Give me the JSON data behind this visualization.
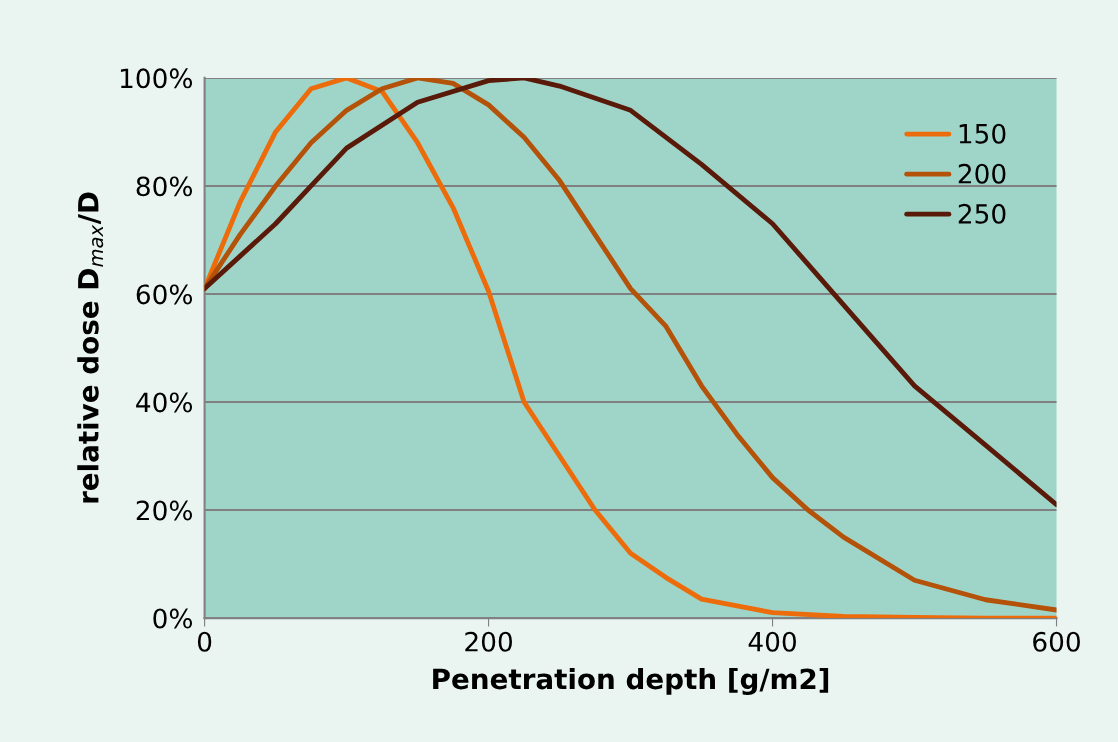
{
  "chart_data": {
    "type": "line",
    "xlabel": "Penetration depth [g/m2]",
    "ylabel": "relative dose D$_{max}$/D",
    "xlim": [
      0,
      600
    ],
    "xticks": [
      0,
      200,
      400,
      600
    ],
    "ylim": [
      0,
      100
    ],
    "yticks": [
      {
        "value": 0,
        "label": "0%"
      },
      {
        "value": 20,
        "label": "20%"
      },
      {
        "value": 40,
        "label": "40%"
      },
      {
        "value": 60,
        "label": "60%"
      },
      {
        "value": 80,
        "label": "80%"
      },
      {
        "value": 100,
        "label": "100%"
      }
    ],
    "grid": "y",
    "legend": "top right",
    "line_style": "solid",
    "marker": "none",
    "series": [
      {
        "name": "150",
        "color": "#ec6c0c",
        "x": [
          0,
          25,
          50,
          75,
          100,
          125,
          150,
          175,
          200,
          225,
          250,
          275,
          300,
          325,
          350,
          400,
          450,
          500,
          550,
          600
        ],
        "values": [
          61,
          77,
          90,
          98,
          100,
          97.5,
          88,
          76,
          60.5,
          40,
          30,
          20,
          12,
          7.5,
          3.5,
          1,
          0.3,
          0.1,
          0,
          0
        ]
      },
      {
        "name": "200",
        "color": "#b35208",
        "x": [
          0,
          25,
          50,
          75,
          100,
          125,
          150,
          175,
          200,
          225,
          250,
          275,
          300,
          325,
          350,
          375,
          400,
          425,
          450,
          500,
          550,
          600
        ],
        "values": [
          61,
          71,
          80,
          88,
          94,
          98,
          100,
          99,
          95,
          89,
          81,
          71,
          61,
          54,
          43,
          34,
          26,
          20,
          15,
          7,
          3.4,
          1.5
        ]
      },
      {
        "name": "250",
        "color": "#5a1a0a",
        "x": [
          0,
          25,
          50,
          75,
          100,
          150,
          200,
          225,
          250,
          300,
          350,
          400,
          450,
          500,
          550,
          600
        ],
        "values": [
          61,
          67,
          73,
          80,
          87,
          95.5,
          99.5,
          100,
          98.5,
          94,
          84,
          73,
          58,
          43,
          32,
          21
        ]
      }
    ]
  }
}
